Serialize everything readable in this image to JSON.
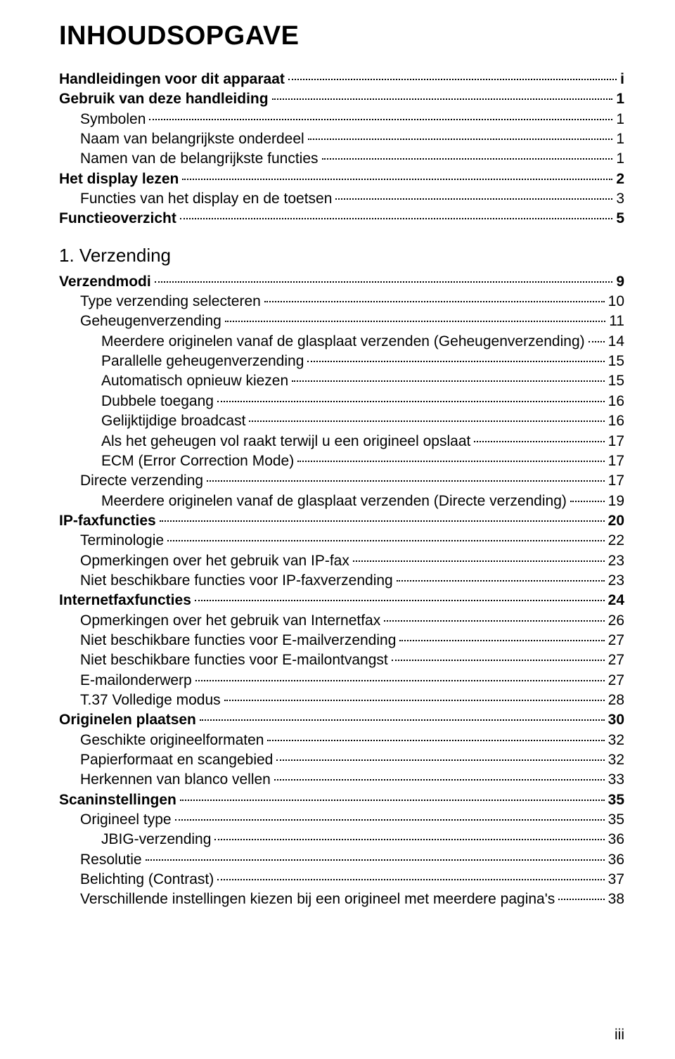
{
  "title": "INHOUDSOPGAVE",
  "chapter": "1. Verzending",
  "footer": "iii",
  "entries": [
    {
      "label": "Handleidingen voor dit apparaat",
      "page": "i",
      "indent": 0,
      "bold": true
    },
    {
      "label": "Gebruik van deze handleiding",
      "page": "1",
      "indent": 0,
      "bold": true
    },
    {
      "label": "Symbolen",
      "page": "1",
      "indent": 1,
      "bold": false
    },
    {
      "label": "Naam van belangrijkste onderdeel",
      "page": "1",
      "indent": 1,
      "bold": false
    },
    {
      "label": "Namen van de belangrijkste functies",
      "page": "1",
      "indent": 1,
      "bold": false
    },
    {
      "label": "Het display lezen",
      "page": "2",
      "indent": 0,
      "bold": true
    },
    {
      "label": "Functies van het display en de toetsen",
      "page": "3",
      "indent": 1,
      "bold": false
    },
    {
      "label": "Functieoverzicht",
      "page": "5",
      "indent": 0,
      "bold": true
    },
    {
      "type": "chapter"
    },
    {
      "label": "Verzendmodi",
      "page": "9",
      "indent": 0,
      "bold": true
    },
    {
      "label": "Type verzending selecteren",
      "page": "10",
      "indent": 1,
      "bold": false
    },
    {
      "label": "Geheugenverzending",
      "page": "11",
      "indent": 1,
      "bold": false
    },
    {
      "label": "Meerdere originelen vanaf de glasplaat verzenden (Geheugenverzending)",
      "page": "14",
      "indent": 2,
      "bold": false
    },
    {
      "label": "Parallelle geheugenverzending",
      "page": "15",
      "indent": 2,
      "bold": false
    },
    {
      "label": "Automatisch opnieuw kiezen",
      "page": "15",
      "indent": 2,
      "bold": false
    },
    {
      "label": "Dubbele toegang",
      "page": "16",
      "indent": 2,
      "bold": false
    },
    {
      "label": "Gelijktijdige broadcast",
      "page": "16",
      "indent": 2,
      "bold": false
    },
    {
      "label": "Als het geheugen vol raakt terwijl u een origineel opslaat",
      "page": "17",
      "indent": 2,
      "bold": false
    },
    {
      "label": "ECM (Error Correction Mode)",
      "page": "17",
      "indent": 2,
      "bold": false
    },
    {
      "label": "Directe verzending",
      "page": "17",
      "indent": 1,
      "bold": false
    },
    {
      "label": "Meerdere originelen vanaf de glasplaat verzenden (Directe verzending)",
      "page": "19",
      "indent": 2,
      "bold": false
    },
    {
      "label": "IP-faxfuncties",
      "page": "20",
      "indent": 0,
      "bold": true
    },
    {
      "label": "Terminologie",
      "page": "22",
      "indent": 1,
      "bold": false
    },
    {
      "label": "Opmerkingen over het gebruik van IP-fax",
      "page": "23",
      "indent": 1,
      "bold": false
    },
    {
      "label": "Niet beschikbare functies voor IP-faxverzending",
      "page": "23",
      "indent": 1,
      "bold": false
    },
    {
      "label": "Internetfaxfuncties",
      "page": "24",
      "indent": 0,
      "bold": true
    },
    {
      "label": "Opmerkingen over het gebruik van Internetfax",
      "page": "26",
      "indent": 1,
      "bold": false
    },
    {
      "label": "Niet beschikbare functies voor E-mailverzending",
      "page": "27",
      "indent": 1,
      "bold": false
    },
    {
      "label": "Niet beschikbare functies voor E-mailontvangst",
      "page": "27",
      "indent": 1,
      "bold": false
    },
    {
      "label": "E-mailonderwerp",
      "page": "27",
      "indent": 1,
      "bold": false
    },
    {
      "label": "T.37 Volledige modus",
      "page": "28",
      "indent": 1,
      "bold": false
    },
    {
      "label": "Originelen plaatsen",
      "page": "30",
      "indent": 0,
      "bold": true
    },
    {
      "label": "Geschikte origineelformaten",
      "page": "32",
      "indent": 1,
      "bold": false
    },
    {
      "label": "Papierformaat en scangebied",
      "page": "32",
      "indent": 1,
      "bold": false
    },
    {
      "label": "Herkennen van blanco vellen",
      "page": "33",
      "indent": 1,
      "bold": false
    },
    {
      "label": "Scaninstellingen",
      "page": "35",
      "indent": 0,
      "bold": true
    },
    {
      "label": "Origineel type",
      "page": "35",
      "indent": 1,
      "bold": false
    },
    {
      "label": "JBIG-verzending",
      "page": "36",
      "indent": 2,
      "bold": false
    },
    {
      "label": "Resolutie",
      "page": "36",
      "indent": 1,
      "bold": false
    },
    {
      "label": "Belichting (Contrast)",
      "page": "37",
      "indent": 1,
      "bold": false
    },
    {
      "label": "Verschillende instellingen kiezen bij een origineel met meerdere pagina's",
      "page": "38",
      "indent": 1,
      "bold": false
    }
  ]
}
